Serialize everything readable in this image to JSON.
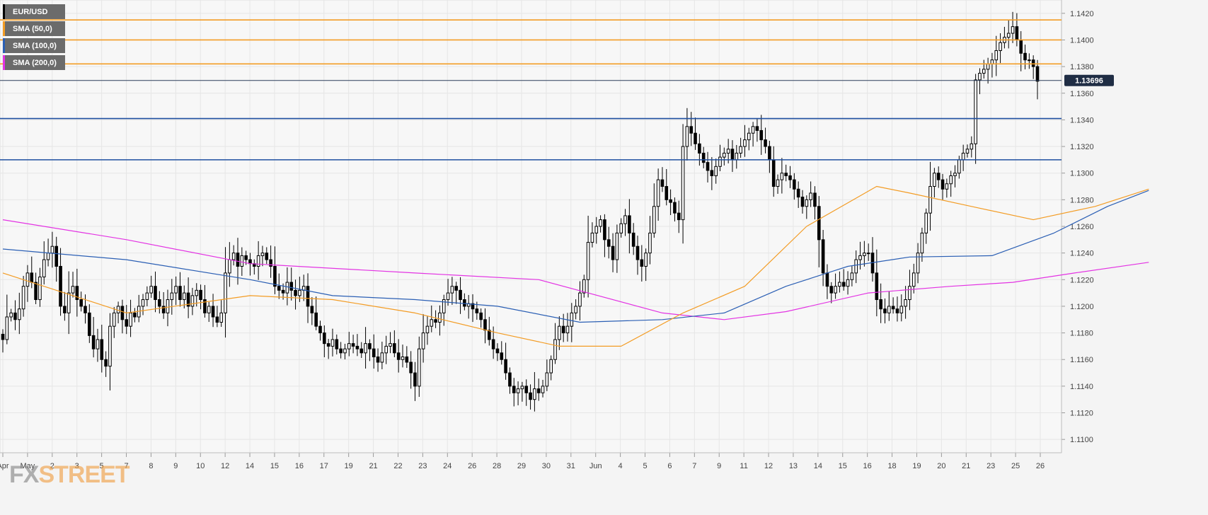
{
  "legend": [
    {
      "label": "EUR/USD",
      "color": "#000000"
    },
    {
      "label": "SMA (50,0)",
      "color": "#f39c24"
    },
    {
      "label": "SMA (100,0)",
      "color": "#2b5fb4"
    },
    {
      "label": "SMA (200,0)",
      "color": "#e333e3"
    }
  ],
  "watermark": {
    "prefix": "FX",
    "suffix": "STREET"
  },
  "price_label": "1.13696",
  "chart_data": {
    "type": "candlestick",
    "symbol": "EUR/USD",
    "ylim": [
      1.109,
      1.143
    ],
    "yticks": [
      "1.1100",
      "1.1120",
      "1.1140",
      "1.1160",
      "1.1180",
      "1.1200",
      "1.1220",
      "1.1240",
      "1.1260",
      "1.1280",
      "1.1300",
      "1.1320",
      "1.1340",
      "1.1360",
      "1.1380",
      "1.1400",
      "1.1420"
    ],
    "xtick_labels": [
      "Apr",
      "May",
      "2",
      "3",
      "5",
      "7",
      "8",
      "9",
      "10",
      "12",
      "14",
      "15",
      "16",
      "17",
      "19",
      "21",
      "22",
      "23",
      "24",
      "26",
      "28",
      "29",
      "30",
      "31",
      "Jun",
      "4",
      "5",
      "6",
      "7",
      "9",
      "11",
      "12",
      "13",
      "14",
      "15",
      "16",
      "18",
      "19",
      "20",
      "21",
      "23",
      "25",
      "26"
    ],
    "grid": true,
    "horizontal_levels": [
      {
        "value": 1.1415,
        "color": "#f39c24"
      },
      {
        "value": 1.14,
        "color": "#f39c24"
      },
      {
        "value": 1.1382,
        "color": "#f39c24"
      },
      {
        "value": 1.1341,
        "color": "#1f4fa0"
      },
      {
        "value": 1.131,
        "color": "#1f4fa0"
      }
    ],
    "last_price": 1.13696,
    "candles_close": [
      1.1175,
      1.1192,
      1.1195,
      1.119,
      1.1198,
      1.1215,
      1.1225,
      1.1218,
      1.1205,
      1.1222,
      1.1235,
      1.124,
      1.1245,
      1.123,
      1.12,
      1.1195,
      1.121,
      1.1215,
      1.1205,
      1.12,
      1.1195,
      1.1178,
      1.1168,
      1.1175,
      1.116,
      1.1155,
      1.1185,
      1.1195,
      1.12,
      1.119,
      1.1185,
      1.1195,
      1.1192,
      1.12,
      1.1205,
      1.121,
      1.1215,
      1.1205,
      1.12,
      1.1195,
      1.1205,
      1.121,
      1.1215,
      1.1205,
      1.121,
      1.12,
      1.1208,
      1.1212,
      1.1205,
      1.1195,
      1.12,
      1.1192,
      1.1188,
      1.1195,
      1.1225,
      1.1235,
      1.124,
      1.123,
      1.1238,
      1.1235,
      1.1232,
      1.123,
      1.1238,
      1.124,
      1.1235,
      1.123,
      1.1215,
      1.1212,
      1.121,
      1.1218,
      1.1212,
      1.1208,
      1.1212,
      1.1215,
      1.12,
      1.1195,
      1.1185,
      1.118,
      1.1172,
      1.117,
      1.1175,
      1.1168,
      1.1165,
      1.1168,
      1.1172,
      1.117,
      1.1168,
      1.1165,
      1.1172,
      1.1168,
      1.1162,
      1.1158,
      1.1165,
      1.117,
      1.1172,
      1.1165,
      1.116,
      1.1162,
      1.1158,
      1.115,
      1.114,
      1.1168,
      1.118,
      1.1185,
      1.119,
      1.1188,
      1.1195,
      1.1205,
      1.121,
      1.1215,
      1.1212,
      1.1205,
      1.12,
      1.1202,
      1.1198,
      1.1195,
      1.119,
      1.1182,
      1.1175,
      1.1168,
      1.1165,
      1.116,
      1.115,
      1.114,
      1.1135,
      1.1138,
      1.114,
      1.1135,
      1.113,
      1.1138,
      1.1135,
      1.114,
      1.115,
      1.116,
      1.1175,
      1.1185,
      1.118,
      1.1185,
      1.1195,
      1.12,
      1.121,
      1.122,
      1.1248,
      1.1255,
      1.126,
      1.1265,
      1.125,
      1.1245,
      1.1235,
      1.1255,
      1.1262,
      1.1268,
      1.1255,
      1.1245,
      1.1235,
      1.123,
      1.124,
      1.1255,
      1.1275,
      1.1295,
      1.129,
      1.128,
      1.1278,
      1.127,
      1.1265,
      1.132,
      1.1335,
      1.133,
      1.1322,
      1.1315,
      1.1308,
      1.1302,
      1.1298,
      1.1305,
      1.1312,
      1.1315,
      1.1318,
      1.131,
      1.1315,
      1.132,
      1.1325,
      1.133,
      1.1335,
      1.1332,
      1.1325,
      1.132,
      1.131,
      1.129,
      1.1295,
      1.13,
      1.1298,
      1.1295,
      1.1288,
      1.1282,
      1.1275,
      1.128,
      1.1285,
      1.1275,
      1.125,
      1.1225,
      1.1215,
      1.121,
      1.1215,
      1.1218,
      1.1215,
      1.122,
      1.1225,
      1.1235,
      1.1238,
      1.124,
      1.124,
      1.1225,
      1.1205,
      1.1198,
      1.1195,
      1.12,
      1.1198,
      1.1195,
      1.12,
      1.1205,
      1.1215,
      1.1225,
      1.124,
      1.1255,
      1.127,
      1.129,
      1.13,
      1.1295,
      1.1288,
      1.1292,
      1.1298,
      1.13,
      1.131,
      1.1315,
      1.1318,
      1.1322,
      1.137,
      1.1375,
      1.1378,
      1.1382,
      1.1385,
      1.1392,
      1.1398,
      1.1402,
      1.1405,
      1.141,
      1.14,
      1.139,
      1.1385,
      1.1385,
      1.138,
      1.1369
    ],
    "sma_50": [
      [
        0,
        1.1225
      ],
      [
        30,
        1.1195
      ],
      [
        60,
        1.1208
      ],
      [
        80,
        1.1205
      ],
      [
        100,
        1.1195
      ],
      [
        120,
        1.118
      ],
      [
        135,
        1.117
      ],
      [
        150,
        1.117
      ],
      [
        165,
        1.1195
      ],
      [
        180,
        1.1215
      ],
      [
        195,
        1.126
      ],
      [
        212,
        1.129
      ],
      [
        220,
        1.1285
      ],
      [
        235,
        1.1275
      ],
      [
        250,
        1.1265
      ],
      [
        265,
        1.1275
      ],
      [
        278,
        1.1288
      ]
    ],
    "sma_100": [
      [
        0,
        1.1243
      ],
      [
        30,
        1.1235
      ],
      [
        60,
        1.122
      ],
      [
        80,
        1.1208
      ],
      [
        100,
        1.1205
      ],
      [
        120,
        1.12
      ],
      [
        140,
        1.1188
      ],
      [
        160,
        1.119
      ],
      [
        175,
        1.1195
      ],
      [
        190,
        1.1215
      ],
      [
        205,
        1.123
      ],
      [
        220,
        1.1237
      ],
      [
        240,
        1.1238
      ],
      [
        255,
        1.1255
      ],
      [
        268,
        1.1275
      ],
      [
        278,
        1.1287
      ]
    ],
    "sma_200": [
      [
        0,
        1.1265
      ],
      [
        30,
        1.125
      ],
      [
        60,
        1.1232
      ],
      [
        100,
        1.1225
      ],
      [
        130,
        1.122
      ],
      [
        160,
        1.1195
      ],
      [
        175,
        1.119
      ],
      [
        190,
        1.1196
      ],
      [
        210,
        1.121
      ],
      [
        230,
        1.1215
      ],
      [
        245,
        1.1218
      ],
      [
        260,
        1.1225
      ],
      [
        278,
        1.1233
      ]
    ]
  }
}
